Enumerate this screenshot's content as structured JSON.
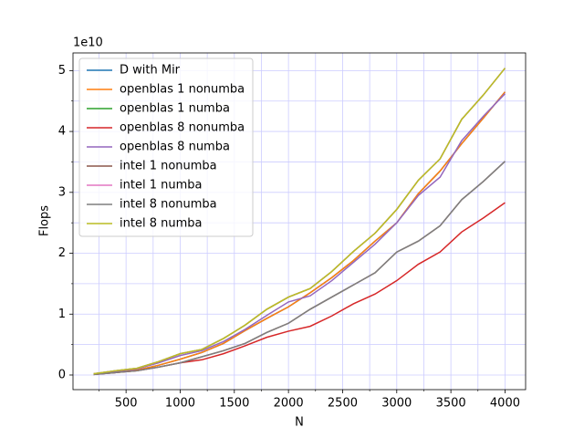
{
  "chart_data": {
    "type": "line",
    "xlabel": "N",
    "ylabel": "Flops",
    "y_offset_label": "1e10",
    "x": [
      200,
      400,
      600,
      800,
      1000,
      1200,
      1400,
      1600,
      1800,
      2000,
      2200,
      2400,
      2600,
      2800,
      3000,
      3200,
      3400,
      3600,
      3800,
      4000
    ],
    "series": [
      {
        "name": "D with Mir",
        "color": "#1f77b4",
        "values": [
          0.01,
          0.05,
          0.08,
          0.16,
          0.26,
          0.37,
          0.52,
          0.73,
          0.93,
          1.12,
          1.35,
          1.6,
          1.88,
          2.2,
          2.5,
          2.98,
          3.35,
          3.8,
          4.22,
          4.65
        ]
      },
      {
        "name": "openblas 1 nonumba",
        "color": "#ff7f0e",
        "values": [
          0.01,
          0.05,
          0.08,
          0.16,
          0.26,
          0.37,
          0.52,
          0.73,
          0.93,
          1.12,
          1.35,
          1.6,
          1.88,
          2.2,
          2.5,
          2.98,
          3.35,
          3.8,
          4.22,
          4.65
        ]
      },
      {
        "name": "openblas 1 numba",
        "color": "#2ca02c",
        "values": [
          0.02,
          0.07,
          0.11,
          0.22,
          0.35,
          0.42,
          0.6,
          0.82,
          1.08,
          1.28,
          1.42,
          1.7,
          2.03,
          2.33,
          2.72,
          3.2,
          3.55,
          4.2,
          4.6,
          5.04
        ]
      },
      {
        "name": "openblas 8 nonumba",
        "color": "#d62728",
        "values": [
          0.01,
          0.04,
          0.07,
          0.13,
          0.2,
          0.25,
          0.35,
          0.48,
          0.62,
          0.72,
          0.8,
          0.97,
          1.17,
          1.33,
          1.55,
          1.82,
          2.02,
          2.35,
          2.58,
          2.83
        ]
      },
      {
        "name": "openblas 8 numba",
        "color": "#9467bd",
        "values": [
          0.02,
          0.06,
          0.1,
          0.2,
          0.32,
          0.4,
          0.55,
          0.75,
          0.98,
          1.2,
          1.3,
          1.55,
          1.85,
          2.15,
          2.5,
          2.95,
          3.25,
          3.85,
          4.25,
          4.62
        ]
      },
      {
        "name": "intel 1 nonumba",
        "color": "#8c564b",
        "values": [
          0.01,
          0.04,
          0.07,
          0.13,
          0.2,
          0.3,
          0.4,
          0.52,
          0.7,
          0.85,
          1.08,
          1.28,
          1.48,
          1.68,
          2.02,
          2.2,
          2.45,
          2.88,
          3.18,
          3.51
        ]
      },
      {
        "name": "intel 1 numba",
        "color": "#e377c2",
        "values": [
          0.02,
          0.07,
          0.11,
          0.22,
          0.35,
          0.42,
          0.6,
          0.82,
          1.08,
          1.28,
          1.42,
          1.7,
          2.03,
          2.33,
          2.72,
          3.2,
          3.55,
          4.2,
          4.6,
          5.04
        ]
      },
      {
        "name": "intel 8 nonumba",
        "color": "#7f7f7f",
        "values": [
          0.01,
          0.04,
          0.07,
          0.13,
          0.2,
          0.3,
          0.4,
          0.52,
          0.7,
          0.85,
          1.08,
          1.28,
          1.48,
          1.68,
          2.02,
          2.2,
          2.45,
          2.88,
          3.18,
          3.51
        ]
      },
      {
        "name": "intel 8 numba",
        "color": "#bcbd22",
        "values": [
          0.02,
          0.07,
          0.11,
          0.22,
          0.35,
          0.42,
          0.6,
          0.82,
          1.08,
          1.28,
          1.42,
          1.7,
          2.03,
          2.33,
          2.72,
          3.2,
          3.55,
          4.2,
          4.6,
          5.04
        ]
      }
    ],
    "xlim": [
      10,
      4190
    ],
    "ylim": [
      -0.24,
      5.29
    ],
    "xticks": [
      500,
      1000,
      1500,
      2000,
      2500,
      3000,
      3500,
      4000
    ],
    "xticks_minor": [
      250,
      750,
      1250,
      1750,
      2250,
      2750,
      3250,
      3750
    ],
    "yticks": [
      0,
      1,
      2,
      3,
      4,
      5
    ],
    "yticks_minor": [
      0.5,
      1.5,
      2.5,
      3.5,
      4.5
    ],
    "grid": true,
    "grid_color": "#ccccff",
    "legend": "upper left"
  }
}
